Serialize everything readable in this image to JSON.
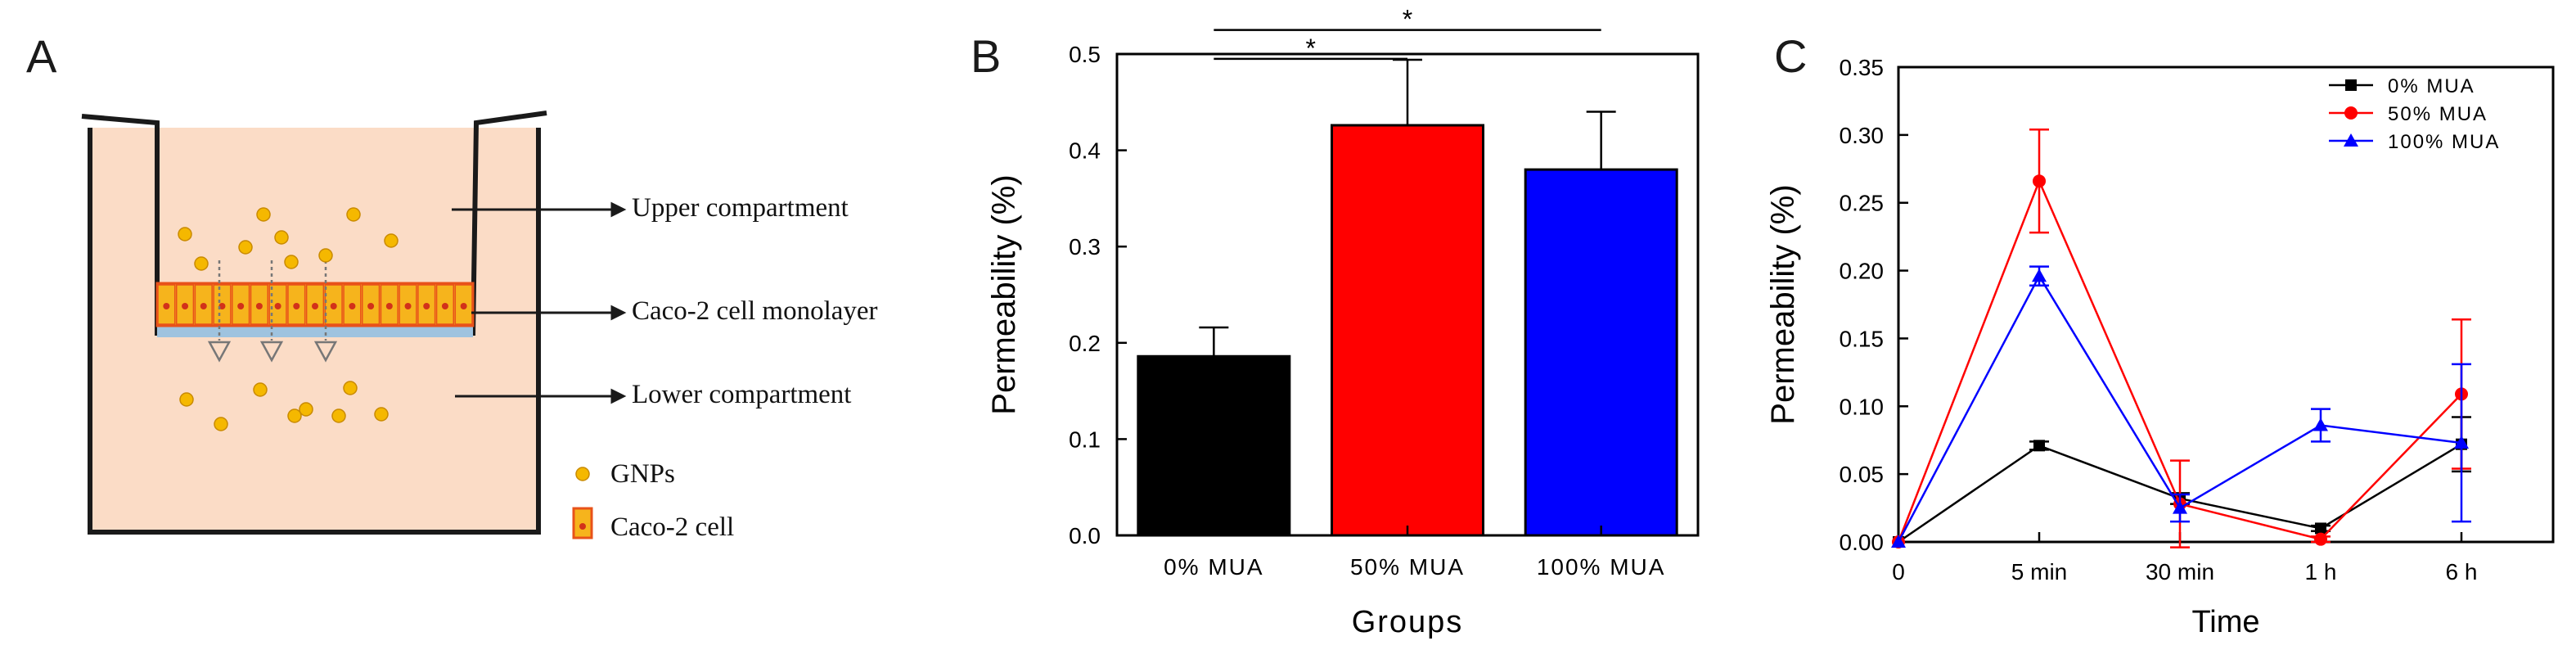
{
  "panels": {
    "a": {
      "letter": "A",
      "labels": {
        "upper": "Upper compartment",
        "monolayer": "Caco-2 cell monolayer",
        "lower": "Lower compartment",
        "gnps": "GNPs",
        "cell": "Caco-2 cell"
      },
      "colors": {
        "medium": "#fbdcc6",
        "gnp": "#f5b800",
        "cell_fill": "#f6b41c",
        "cell_border": "#e8521a",
        "membrane": "#9fc3df"
      }
    },
    "b": {
      "letter": "B"
    },
    "c": {
      "letter": "C"
    }
  },
  "chart_data": [
    {
      "id": "B",
      "type": "bar",
      "xlabel": "Groups",
      "ylabel": "Permeability (%)",
      "ylim": [
        0,
        0.5
      ],
      "yticks": [
        0.0,
        0.1,
        0.2,
        0.3,
        0.4,
        0.5
      ],
      "ytick_labels": [
        "0.0",
        "0.1",
        "0.2",
        "0.3",
        "0.4",
        "0.5"
      ],
      "categories": [
        "0% MUA",
        "50% MUA",
        "100% MUA"
      ],
      "values": [
        0.186,
        0.426,
        0.38
      ],
      "errors": [
        0.03,
        0.068,
        0.06
      ],
      "colors": [
        "#000000",
        "#ff0000",
        "#0000ff"
      ],
      "significance": [
        {
          "from": 0,
          "to": 2,
          "label": "*",
          "y": 0.525
        },
        {
          "from": 0,
          "to": 1,
          "label": "*",
          "y": 0.495
        }
      ]
    },
    {
      "id": "C",
      "type": "line",
      "xlabel": "Time",
      "ylabel": "Permeability (%)",
      "ylim": [
        0,
        0.35
      ],
      "yticks": [
        0.0,
        0.05,
        0.1,
        0.15,
        0.2,
        0.25,
        0.3,
        0.35
      ],
      "ytick_labels": [
        "0.00",
        "0.05",
        "0.10",
        "0.15",
        "0.20",
        "0.25",
        "0.30",
        "0.35"
      ],
      "categories": [
        "0",
        "5 min",
        "30 min",
        "1 h",
        "6 h"
      ],
      "legend_position": "top-right",
      "series": [
        {
          "name": "0% MUA",
          "color": "#000000",
          "marker": "square",
          "values": [
            0.0,
            0.071,
            0.032,
            0.01,
            0.072
          ],
          "errors": [
            0.0,
            0.003,
            0.004,
            0.002,
            0.02
          ]
        },
        {
          "name": "50% MUA",
          "color": "#ff0000",
          "marker": "circle",
          "values": [
            0.0,
            0.266,
            0.028,
            0.002,
            0.109
          ],
          "errors": [
            0.0,
            0.038,
            0.032,
            0.002,
            0.055
          ]
        },
        {
          "name": "100% MUA",
          "color": "#0000ff",
          "marker": "triangle",
          "values": [
            0.0,
            0.196,
            0.025,
            0.086,
            0.073
          ],
          "errors": [
            0.0,
            0.007,
            0.01,
            0.012,
            0.058
          ]
        }
      ]
    }
  ]
}
